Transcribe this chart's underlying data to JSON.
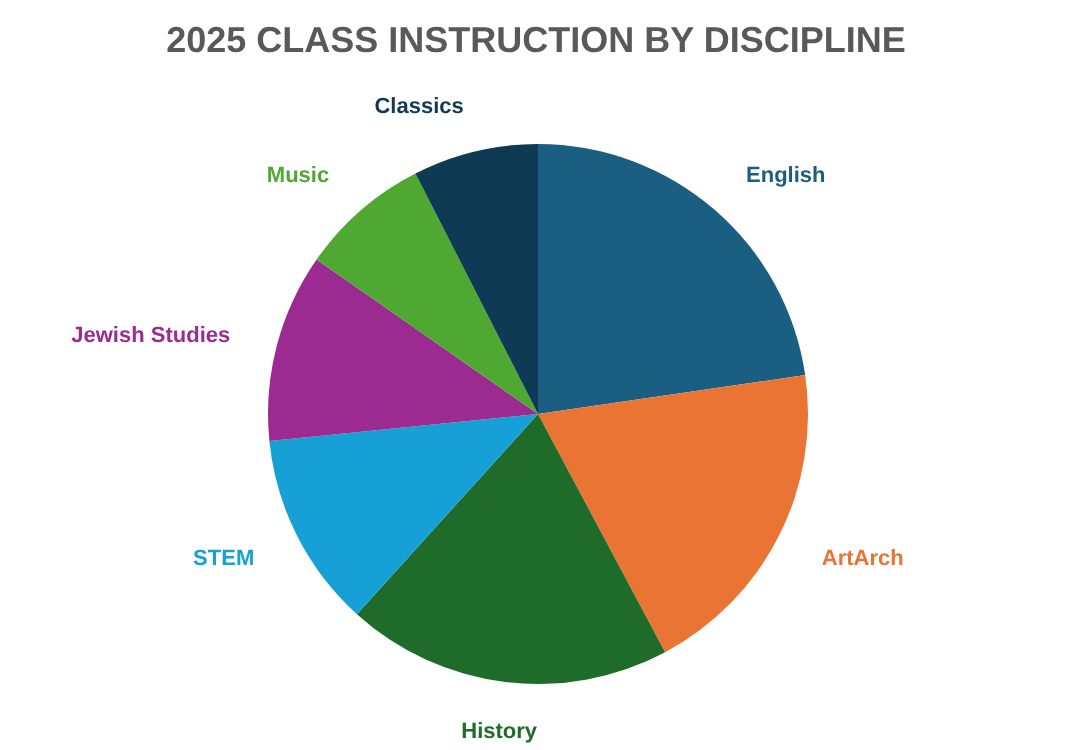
{
  "chart_data": {
    "type": "pie",
    "title": "2025 CLASS INSTRUCTION BY DISCIPLINE",
    "categories": [
      "English",
      "ArtArch",
      "History",
      "STEM",
      "Jewish Studies",
      "Music",
      "Classics"
    ],
    "values": [
      22.7,
      19.5,
      19.5,
      11.7,
      11.3,
      7.8,
      7.5
    ],
    "colors": [
      "#1a5e82",
      "#ea7434",
      "#1e6b2a",
      "#17a0d6",
      "#9b2a91",
      "#4ea832",
      "#0e3a53"
    ],
    "legend": false
  }
}
